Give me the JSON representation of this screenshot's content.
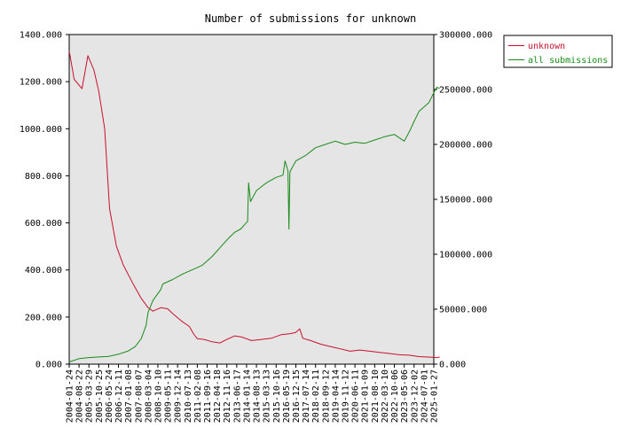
{
  "chart_data": {
    "type": "line",
    "title": "Number of submissions for unknown",
    "x_tick_labels": [
      "2004-01-24",
      "2004-08-22",
      "2005-03-29",
      "2005-10-25",
      "2006-05-24",
      "2006-12-11",
      "2007-01-08",
      "2007-08-07",
      "2008-03-04",
      "2008-10-10",
      "2009-05-11",
      "2009-12-14",
      "2010-07-13",
      "2011-02-08",
      "2011-09-16",
      "2012-04-18",
      "2012-11-16",
      "2013-06-17",
      "2014-01-14",
      "2014-08-13",
      "2015-03-13",
      "2015-10-16",
      "2016-05-19",
      "2016-12-15",
      "2017-07-14",
      "2018-02-11",
      "2018-09-12",
      "2019-04-14",
      "2019-11-12",
      "2020-06-11",
      "2021-01-09",
      "2021-08-10",
      "2022-03-10",
      "2022-10-06",
      "2023-05-06",
      "2023-12-02",
      "2024-07-01",
      "2025-01-27"
    ],
    "y_left": {
      "range": [
        0,
        1400
      ],
      "ticks": [
        "0.000",
        "200.000",
        "400.000",
        "600.000",
        "800.000",
        "1000.000",
        "1200.000",
        "1400.000"
      ]
    },
    "y_right": {
      "range": [
        0,
        300000
      ],
      "ticks": [
        "0.000",
        "50000.000",
        "100000.000",
        "150000.000",
        "200000.000",
        "250000.000",
        "300000.000"
      ]
    },
    "legend": {
      "placement": "top-right outside"
    },
    "series": [
      {
        "name": "unknown",
        "axis": "left",
        "color": "#c8102e",
        "points": [
          [
            0,
            1330
          ],
          [
            0.5,
            1210
          ],
          [
            1.3,
            1170
          ],
          [
            1.9,
            1310
          ],
          [
            2.5,
            1250
          ],
          [
            3,
            1160
          ],
          [
            3.6,
            1000
          ],
          [
            4.1,
            660
          ],
          [
            4.8,
            500
          ],
          [
            5.5,
            420
          ],
          [
            6.5,
            340
          ],
          [
            7.3,
            280
          ],
          [
            8,
            240
          ],
          [
            8.5,
            225
          ],
          [
            9.3,
            240
          ],
          [
            10,
            235
          ],
          [
            10.5,
            215
          ],
          [
            11.5,
            180
          ],
          [
            12.2,
            160
          ],
          [
            12.6,
            130
          ],
          [
            13,
            108
          ],
          [
            13.7,
            105
          ],
          [
            14.5,
            95
          ],
          [
            15.3,
            90
          ],
          [
            16,
            105
          ],
          [
            16.8,
            120
          ],
          [
            17.5,
            115
          ],
          [
            18.5,
            100
          ],
          [
            19.5,
            105
          ],
          [
            20.5,
            110
          ],
          [
            21.5,
            125
          ],
          [
            22.5,
            130
          ],
          [
            23,
            135
          ],
          [
            23.4,
            150
          ],
          [
            23.7,
            110
          ],
          [
            24.5,
            100
          ],
          [
            25.5,
            85
          ],
          [
            26.5,
            75
          ],
          [
            27.5,
            65
          ],
          [
            28.5,
            55
          ],
          [
            29.5,
            60
          ],
          [
            30.5,
            55
          ],
          [
            31.5,
            50
          ],
          [
            32.5,
            45
          ],
          [
            33.5,
            40
          ],
          [
            34.5,
            38
          ],
          [
            35.5,
            32
          ],
          [
            36.5,
            30
          ],
          [
            37.3,
            28
          ],
          [
            37.6,
            30
          ]
        ]
      },
      {
        "name": "all submissions",
        "axis": "right",
        "color": "#1a8a1a",
        "points": [
          [
            0,
            2000
          ],
          [
            1,
            5000
          ],
          [
            2,
            6000
          ],
          [
            3,
            6500
          ],
          [
            4,
            7000
          ],
          [
            5,
            9000
          ],
          [
            6,
            12000
          ],
          [
            6.7,
            16000
          ],
          [
            7.3,
            23000
          ],
          [
            7.8,
            35000
          ],
          [
            8,
            47000
          ],
          [
            8.5,
            58000
          ],
          [
            9.3,
            68000
          ],
          [
            9.5,
            73000
          ],
          [
            10.5,
            77000
          ],
          [
            11.5,
            82000
          ],
          [
            12.5,
            86000
          ],
          [
            13.5,
            90000
          ],
          [
            14.5,
            98000
          ],
          [
            15.5,
            108000
          ],
          [
            16.2,
            115000
          ],
          [
            16.8,
            120000
          ],
          [
            17.4,
            123000
          ],
          [
            18.1,
            130000
          ],
          [
            18.2,
            165000
          ],
          [
            18.4,
            148000
          ],
          [
            19,
            158000
          ],
          [
            20,
            165000
          ],
          [
            21,
            170000
          ],
          [
            21.7,
            172000
          ],
          [
            21.9,
            185000
          ],
          [
            22.2,
            176000
          ],
          [
            22.3,
            123000
          ],
          [
            22.4,
            175000
          ],
          [
            23,
            185000
          ],
          [
            24,
            190000
          ],
          [
            25,
            197000
          ],
          [
            26,
            200000
          ],
          [
            27,
            203000
          ],
          [
            28,
            200000
          ],
          [
            29,
            202000
          ],
          [
            30,
            201000
          ],
          [
            31,
            204000
          ],
          [
            32,
            207000
          ],
          [
            33,
            209000
          ],
          [
            34,
            203000
          ],
          [
            34.6,
            213000
          ],
          [
            35,
            221000
          ],
          [
            35.5,
            230000
          ],
          [
            36.5,
            238000
          ],
          [
            37,
            247000
          ],
          [
            37.3,
            252000
          ],
          [
            37.6,
            251000
          ]
        ]
      }
    ]
  }
}
